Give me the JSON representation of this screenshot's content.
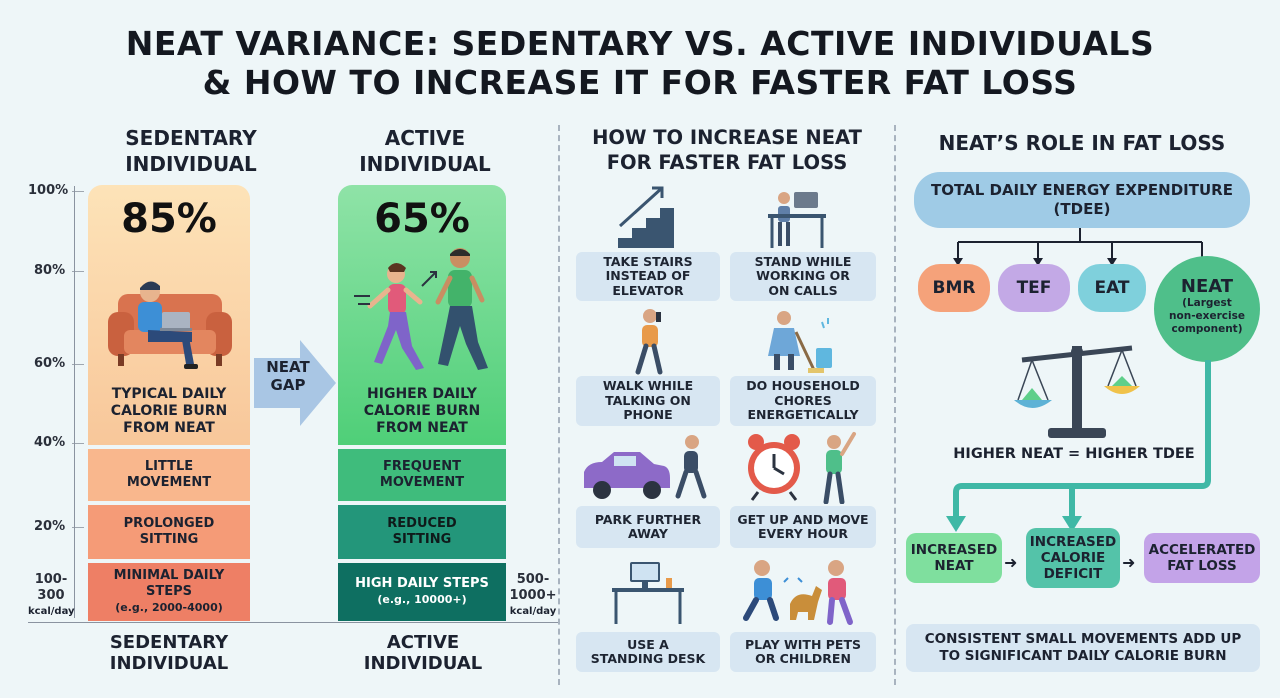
{
  "title": {
    "line1": "NEAT VARIANCE: SEDENTARY VS. ACTIVE INDIVIDUALS",
    "line2": "& HOW TO INCREASE IT FOR FASTER FAT LOSS"
  },
  "axis": {
    "ticks": [
      "100%",
      "80%",
      "60%",
      "40%",
      "20%"
    ],
    "left_bottom": {
      "top": "100-",
      "mid": "300",
      "unit": "kcal/day"
    },
    "right_bottom": {
      "top": "500-",
      "mid": "1000+",
      "unit": "kcal/day"
    }
  },
  "sedentary": {
    "header": "SEDENTARY\nINDIVIDUAL",
    "footer": "SEDENTARY\nINDIVIDUAL",
    "percent": "85%",
    "percent_value": 85,
    "caption": "TYPICAL DAILY\nCALORIE BURN\nFROM NEAT",
    "segments": [
      {
        "text": "LITTLE\nMOVEMENT",
        "sub": ""
      },
      {
        "text": "PROLONGED\nSITTING",
        "sub": ""
      },
      {
        "text": "MINIMAL DAILY\nSTEPS",
        "sub": "(e.g., 2000-4000)"
      }
    ]
  },
  "gap_label": "NEAT\nGAP",
  "active": {
    "header": "ACTIVE\nINDIVIDUAL",
    "footer": "ACTIVE\nINDIVIDUAL",
    "percent": "65%",
    "percent_value": 65,
    "caption": "HIGHER DAILY\nCALORIE BURN\nFROM NEAT",
    "segments": [
      {
        "text": "FREQUENT\nMOVEMENT",
        "sub": ""
      },
      {
        "text": "REDUCED\nSITTING",
        "sub": ""
      },
      {
        "text": "HIGH DAILY STEPS",
        "sub": "(e.g., 10000+)"
      }
    ]
  },
  "tips": {
    "header": "HOW TO INCREASE NEAT\nFOR FASTER FAT LOSS",
    "items": [
      {
        "label": "TAKE STAIRS\nINSTEAD OF\nELEVATOR",
        "icon": "stairs-icon"
      },
      {
        "label": "STAND WHILE\nWORKING OR\nON CALLS",
        "icon": "standing-desk-worker-icon"
      },
      {
        "label": "WALK WHILE\nTALKING ON\nPHONE",
        "icon": "walking-phone-icon"
      },
      {
        "label": "DO HOUSEHOLD\nCHORES\nENERGETICALLY",
        "icon": "mopping-icon"
      },
      {
        "label": "PARK FURTHER\nAWAY",
        "icon": "car-walker-icon"
      },
      {
        "label": "GET UP AND MOVE\nEVERY HOUR",
        "icon": "alarm-clock-icon"
      },
      {
        "label": "USE A\nSTANDING DESK",
        "icon": "standing-desk-icon"
      },
      {
        "label": "PLAY WITH PETS\nOR CHILDREN",
        "icon": "pets-children-icon"
      }
    ]
  },
  "role": {
    "header": "NEAT’S ROLE IN FAT LOSS",
    "tdee": "TOTAL DAILY ENERGY EXPENDITURE\n(TDEE)",
    "components": [
      {
        "label": "BMR",
        "color": "#f5a27a"
      },
      {
        "label": "TEF",
        "color": "#c3a9e6"
      },
      {
        "label": "EAT",
        "color": "#7fd0dc"
      }
    ],
    "neat": {
      "label": "NEAT",
      "sub": "(Largest\nnon-exercise\ncomponent)",
      "color": "#4fbf8a"
    },
    "scale_caption": "HIGHER NEAT = HIGHER TDEE",
    "flow": [
      {
        "label": "INCREASED\nNEAT",
        "color": "#7fdf9e"
      },
      {
        "label": "INCREASED\nCALORIE\nDEFICIT",
        "color": "#54c3a9"
      },
      {
        "label": "ACCELERATED\nFAT LOSS",
        "color": "#c3a3e8"
      }
    ],
    "footer": "CONSISTENT SMALL MOVEMENTS ADD UP\nTO SIGNIFICANT DAILY CALORIE BURN"
  },
  "colors": {
    "sedentary_top": "#fbd8a8",
    "active_top": "#6fd88e",
    "arrow": "#a9c6e4",
    "tip_label_bg": "#d7e6f2"
  }
}
